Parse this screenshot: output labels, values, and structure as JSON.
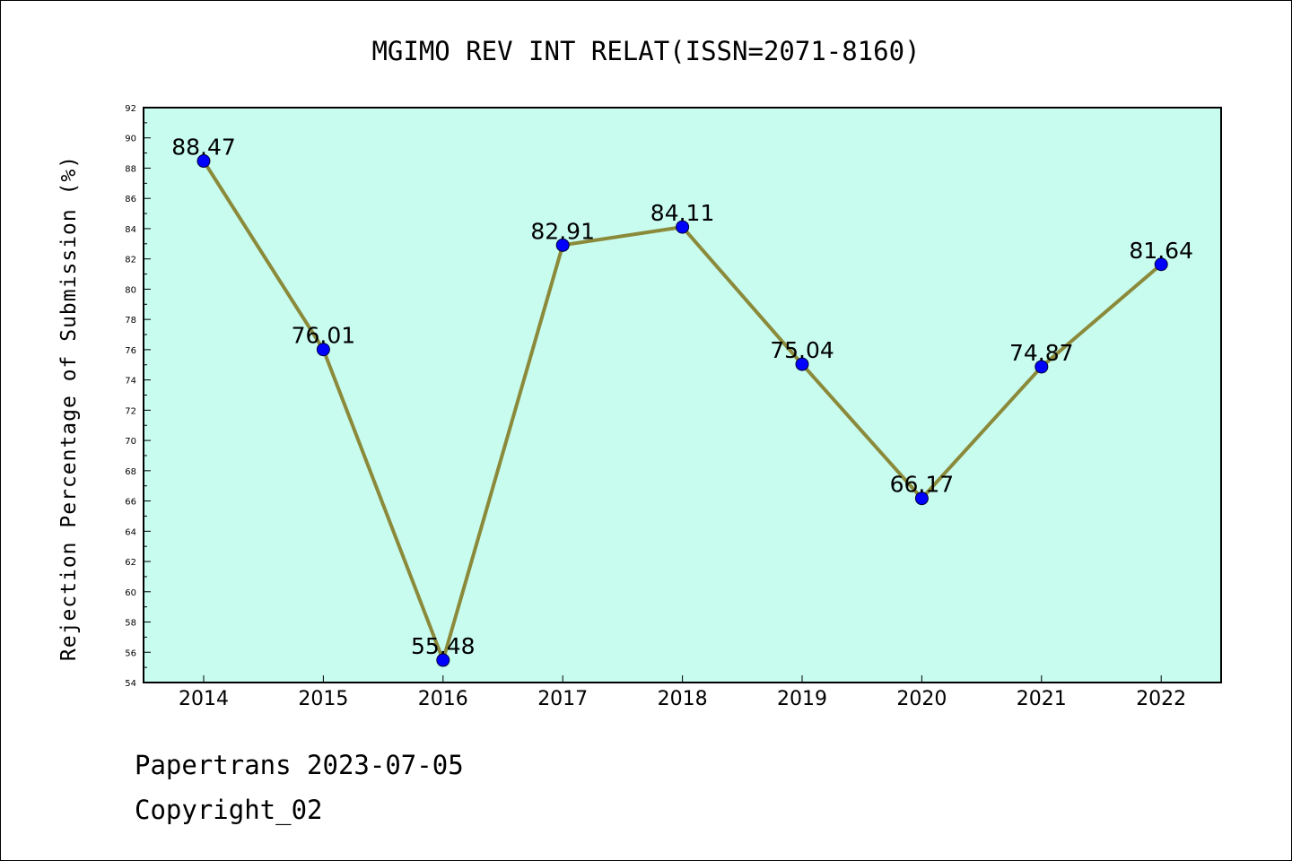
{
  "chart_data": {
    "type": "line",
    "title": "MGIMO REV INT RELAT(ISSN=2071-8160)",
    "ylabel": "Rejection Percentage of Submission (%)",
    "xlabel": "",
    "categories": [
      "2014",
      "2015",
      "2016",
      "2017",
      "2018",
      "2019",
      "2020",
      "2021",
      "2022"
    ],
    "values": [
      88.47,
      76.01,
      55.48,
      82.91,
      84.11,
      75.04,
      66.17,
      74.87,
      81.64
    ],
    "value_labels": [
      "88.47",
      "76.01",
      "55.48",
      "82.91",
      "84.11",
      "75.04",
      "66.17",
      "74.87",
      "81.64"
    ],
    "ylim": [
      54,
      92
    ],
    "ytick_step": 2,
    "grid": false,
    "legend": "none",
    "colors": {
      "plot_background": "#c8fcef",
      "line": "#8b8a3a",
      "marker": "#0000ff"
    }
  },
  "footer": {
    "line1": "Papertrans 2023-07-05",
    "line2": "Copyright_02"
  }
}
